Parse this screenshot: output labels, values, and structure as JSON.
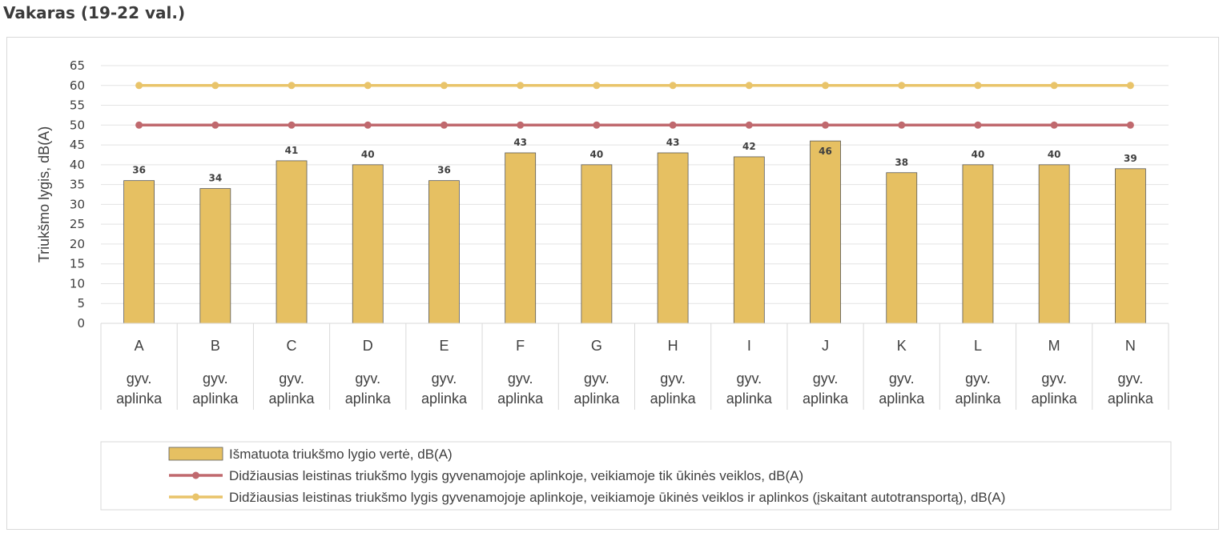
{
  "title": "Vakaras (19-22 val.)",
  "chart_data": {
    "type": "bar",
    "categories": [
      "A",
      "B",
      "C",
      "D",
      "E",
      "F",
      "G",
      "H",
      "I",
      "J",
      "K",
      "L",
      "M",
      "N"
    ],
    "category_sublabel": [
      "gyv.",
      "aplinka"
    ],
    "values": [
      36,
      34,
      41,
      40,
      36,
      43,
      40,
      43,
      42,
      46,
      38,
      40,
      40,
      39
    ],
    "series": [
      {
        "name": "Išmatuota triukšmo lygio vertė, dB(A)",
        "type": "bar",
        "color": "#e6c062",
        "values": [
          36,
          34,
          41,
          40,
          36,
          43,
          40,
          43,
          42,
          46,
          38,
          40,
          40,
          39
        ]
      },
      {
        "name": "Didžiausias leistinas triukšmo lygis gyvenamojoje aplinkoje, veikiamoje tik ūkinės veiklos,  dB(A)",
        "type": "line",
        "color": "#c0696e",
        "values": [
          50,
          50,
          50,
          50,
          50,
          50,
          50,
          50,
          50,
          50,
          50,
          50,
          50,
          50
        ]
      },
      {
        "name": "Didžiausias leistinas triukšmo lygis gyvenamojoje aplinkoje, veikiamoje ūkinės veiklos ir aplinkos (įskaitant autotransportą),  dB(A)",
        "type": "line",
        "color": "#e9c46a",
        "values": [
          60,
          60,
          60,
          60,
          60,
          60,
          60,
          60,
          60,
          60,
          60,
          60,
          60,
          60
        ]
      }
    ],
    "ylabel": "Triukšmo lygis, dB(A)",
    "xlabel": "",
    "ylim": [
      0,
      65
    ],
    "yticks": [
      0,
      5,
      10,
      15,
      20,
      25,
      30,
      35,
      40,
      45,
      50,
      55,
      60,
      65
    ],
    "grid": true,
    "legend_position": "bottom"
  }
}
